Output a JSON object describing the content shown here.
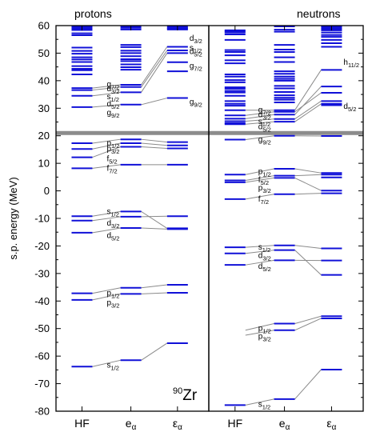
{
  "chart_data": {
    "type": "level-scheme",
    "nucleus": {
      "mass": "90",
      "symbol": "Zr"
    },
    "ylabel": "s.p. energy (MeV)",
    "ylim": [
      -80,
      60
    ],
    "yticks": [
      -80,
      -70,
      -60,
      -50,
      -40,
      -30,
      -20,
      -10,
      0,
      10,
      20,
      30,
      40,
      50,
      60
    ],
    "separator_energy": 21,
    "columns": [
      {
        "main": "HF",
        "sub": ""
      },
      {
        "main": "e",
        "sub": "α"
      },
      {
        "main": "ε",
        "sub": "α"
      }
    ],
    "panels": [
      {
        "title": "protons",
        "columns": [
          [
            63.5,
            59.5,
            59,
            58.4,
            57.2,
            56.5,
            52,
            50.8,
            49.8,
            48.5,
            47.7,
            46.8,
            45.3,
            44.3,
            43.8,
            42.3,
            37.3,
            36.6,
            34.5,
            30.4,
            17.3,
            15.2,
            12.2,
            8.2,
            -9.2,
            -10.8,
            -15.2,
            -37.2,
            -39.6,
            -63.8
          ],
          [
            60.5,
            59.2,
            58.6,
            53,
            52.2,
            50.9,
            50,
            48.9,
            47.8,
            47.1,
            45.9,
            44.9,
            44,
            38.5,
            37.7,
            35.8,
            31.3,
            18.7,
            17.3,
            16,
            9.5,
            -7.5,
            -9.4,
            -13.5,
            -35.2,
            -37.4,
            -61.5
          ],
          [
            59.6,
            59.2,
            58.9,
            58.6,
            52.3,
            51,
            50,
            46.7,
            43.4,
            33.7,
            17.7,
            16.5,
            15.4,
            9.5,
            -9.2,
            -13.6,
            -13.9,
            -34.1,
            -37,
            -55.3
          ]
        ],
        "links": [
          [
            17.3,
            18.7,
            17.7
          ],
          [
            15.2,
            17.3,
            16.5
          ],
          [
            12.2,
            16,
            15.4
          ],
          [
            8.2,
            9.5,
            9.5
          ],
          [
            -9.2,
            -7.5,
            -13.6
          ],
          [
            -10.8,
            -9.4,
            -9.2
          ],
          [
            -15.2,
            -13.5,
            -13.9
          ],
          [
            -37.2,
            -35.2,
            -34.1
          ],
          [
            -39.6,
            -37.4,
            -37
          ],
          [
            -63.8,
            -61.5,
            -55.3
          ],
          [
            37.3,
            38.5,
            52.3
          ],
          [
            36.6,
            37.7,
            51
          ],
          [
            34.5,
            35.8,
            50
          ],
          [
            30.4,
            31.3,
            33.7
          ]
        ],
        "labels": [
          {
            "e": 17.3,
            "n": "p",
            "j": "1/2"
          },
          {
            "e": 15.2,
            "n": "p",
            "j": "3/2"
          },
          {
            "e": 11.7,
            "n": "f",
            "j": "5/2"
          },
          {
            "e": 8.2,
            "n": "f",
            "j": "7/2"
          },
          {
            "e": -7.5,
            "n": "s",
            "j": "1/2"
          },
          {
            "e": -11.8,
            "n": "d",
            "j": "3/2"
          },
          {
            "e": -16.2,
            "n": "d",
            "j": "5/2"
          },
          {
            "e": -37.2,
            "n": "p",
            "j": "1/2"
          },
          {
            "e": -40.6,
            "n": "p",
            "j": "3/2"
          },
          {
            "e": -63.3,
            "n": "s",
            "j": "1/2"
          },
          {
            "e": 38.6,
            "n": "g",
            "j": "7/2"
          },
          {
            "e": 37,
            "n": "d",
            "j": "3/2"
          },
          {
            "e": 34.2,
            "n": "s",
            "j": "1/2"
          },
          {
            "e": 31.6,
            "n": "d",
            "j": "5/2"
          },
          {
            "e": 28.3,
            "n": "g",
            "j": "9/2"
          },
          {
            "e": 55.3,
            "n": "d",
            "j": "3/2"
          },
          {
            "e": 50.5,
            "n": "d",
            "j": "5/2"
          },
          {
            "e": 51.8,
            "n": "s",
            "j": "1/2"
          },
          {
            "e": 45.3,
            "n": "g",
            "j": "7/2"
          },
          {
            "e": 32.3,
            "n": "g",
            "j": "9/2"
          }
        ]
      },
      {
        "title": "neutrons",
        "columns": [
          [
            58.3,
            57.9,
            57.5,
            56.8,
            54.8,
            51.1,
            50.4,
            49.2,
            47.4,
            46.3,
            42.3,
            41.5,
            40.2,
            39.4,
            37.6,
            37.1,
            36.3,
            35.7,
            34.5,
            32.6,
            31.6,
            30.9,
            29.3,
            27.4,
            26.2,
            25.3,
            24.6,
            24.2,
            18.6,
            5.9,
            3.8,
            3.1,
            -3,
            -20.5,
            -22.7,
            -26.9,
            -77.8
          ],
          [
            60.4,
            58.5,
            57.8,
            53,
            51.3,
            50.4,
            48.5,
            46.8,
            43.4,
            42.5,
            41.5,
            40.7,
            40,
            38.1,
            37.2,
            35.9,
            34.7,
            33.8,
            33.1,
            32.1,
            29.3,
            28.7,
            27.7,
            26.1,
            25.1,
            20,
            8,
            5.5,
            4.7,
            -1.2,
            -19.8,
            -21.5,
            -25.2,
            -48.2,
            -50.6,
            -75.6
          ],
          [
            60.2,
            59.8,
            59.2,
            58.8,
            58.3,
            57.5,
            56.6,
            55.9,
            54.8,
            53.6,
            52.3,
            43.9,
            37.9,
            35.6,
            32.6,
            31.6,
            31.1,
            19.9,
            6.5,
            5.9,
            4.9,
            0.1,
            -0.9,
            -20.9,
            -25.3,
            -30.5,
            -45.5,
            -46.3,
            -64.9
          ]
        ],
        "links": [
          [
            18.6,
            20,
            19.9
          ],
          [
            5.9,
            8,
            6.5
          ],
          [
            3.8,
            5.5,
            5.9
          ],
          [
            3.1,
            4.7,
            0.1
          ],
          [
            -3,
            -1.2,
            -0.9
          ],
          [
            -20.5,
            -19.8,
            -20.9
          ],
          [
            -22.7,
            -21.5,
            -30.5
          ],
          [
            -26.9,
            -25.2,
            -25.3
          ],
          [
            -50.6,
            -48.2,
            -45.5
          ],
          [
            -52.4,
            -50.6,
            -46.3
          ],
          [
            -77.8,
            -75.6,
            -64.9
          ],
          [
            29.3,
            29.3,
            43.9
          ],
          [
            27.4,
            28.7,
            35.6
          ],
          [
            26.2,
            27.7,
            37.9
          ],
          [
            25.3,
            26.1,
            32.6
          ],
          [
            24.2,
            25.1,
            31.6
          ]
        ],
        "labels": [
          {
            "e": 7,
            "n": "p",
            "j": "1/2"
          },
          {
            "e": 4,
            "n": "f",
            "j": "5/2"
          },
          {
            "e": 1,
            "n": "p",
            "j": "3/2"
          },
          {
            "e": -3,
            "n": "f",
            "j": "7/2"
          },
          {
            "e": -20.5,
            "n": "s",
            "j": "1/2"
          },
          {
            "e": -23.5,
            "n": "d",
            "j": "3/2"
          },
          {
            "e": -27.4,
            "n": "d",
            "j": "5/2"
          },
          {
            "e": -50,
            "n": "p",
            "j": "1/2"
          },
          {
            "e": -52.8,
            "n": "p",
            "j": "3/2"
          },
          {
            "e": -77.5,
            "n": "s",
            "j": "1/2"
          },
          {
            "e": 29.4,
            "n": "g",
            "j": "7/2"
          },
          {
            "e": 27.6,
            "n": "d",
            "j": "3/2"
          },
          {
            "e": 25.1,
            "n": "s",
            "j": "1/2"
          },
          {
            "e": 23.2,
            "n": "d",
            "j": "5/2"
          },
          {
            "e": 18.6,
            "n": "g",
            "j": "9/2"
          },
          {
            "e": 46.6,
            "n": "h",
            "j": "11/2"
          },
          {
            "e": 30.6,
            "n": "d",
            "j": "5/2"
          }
        ]
      }
    ]
  }
}
